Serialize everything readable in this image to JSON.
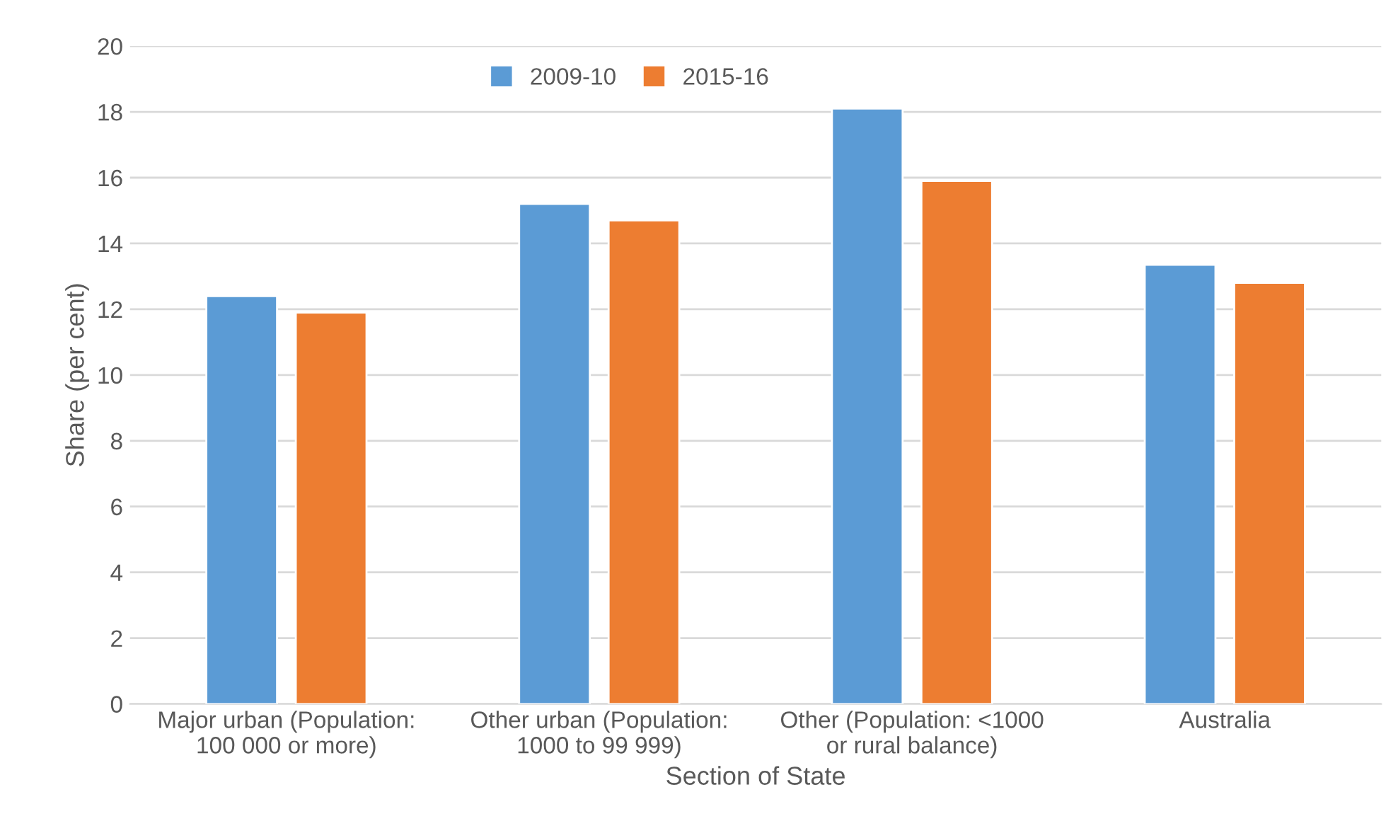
{
  "chart_data": {
    "type": "bar",
    "xlabel": "Section of State",
    "ylabel": "Share (per cent)",
    "categories": [
      "Major urban (Population:\n100 000 or more)",
      "Other urban (Population:\n1000 to 99 999)",
      "Other (Population: <1000\nor rural balance)",
      "Australia"
    ],
    "series": [
      {
        "name": "2009-10",
        "color": "#5b9bd5",
        "values": [
          12.4,
          15.2,
          18.1,
          13.35
        ]
      },
      {
        "name": "2015-16",
        "color": "#ed7d31",
        "values": [
          11.9,
          14.7,
          15.9,
          12.8
        ]
      }
    ],
    "ylim": [
      0,
      20
    ],
    "yticks": [
      0,
      2,
      4,
      6,
      8,
      10,
      12,
      14,
      16,
      18,
      20
    ],
    "grid": "y",
    "legend": "top"
  }
}
